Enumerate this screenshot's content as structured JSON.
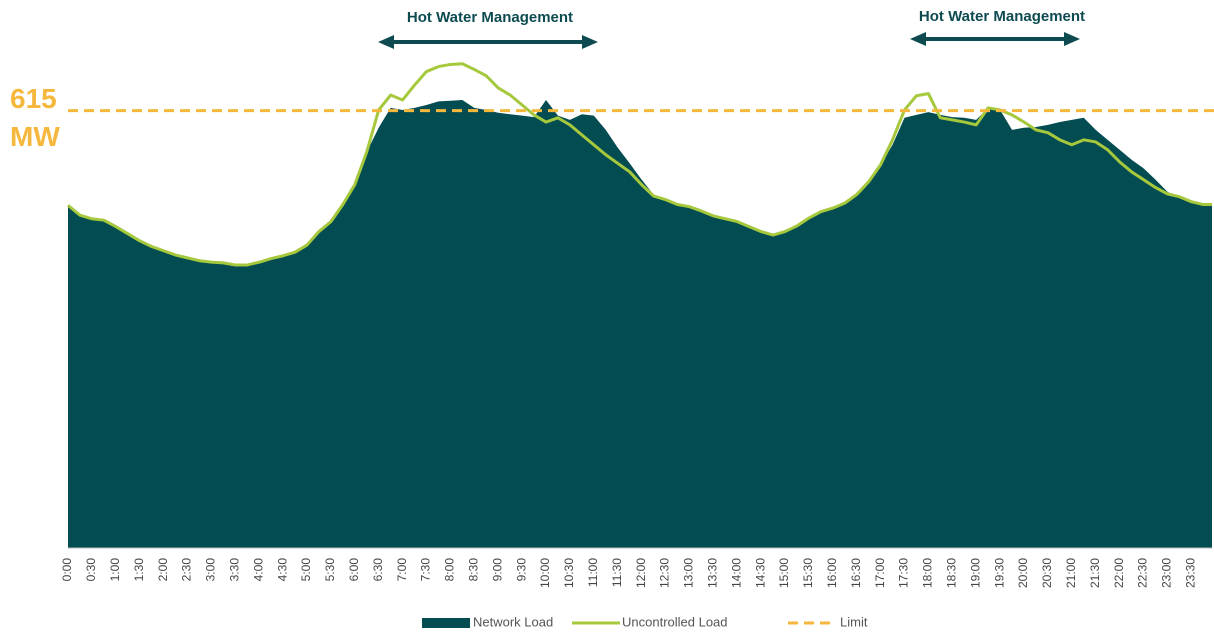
{
  "chart_data": {
    "type": "area_line",
    "categories": [
      "0:00",
      null,
      "0:30",
      null,
      "1:00",
      null,
      "1:30",
      null,
      "2:00",
      null,
      "2:30",
      null,
      "3:00",
      null,
      "3:30",
      null,
      "4:00",
      null,
      "4:30",
      null,
      "5:00",
      null,
      "5:30",
      null,
      "6:00",
      null,
      "6:30",
      null,
      "7:00",
      null,
      "7:30",
      null,
      "8:00",
      null,
      "8:30",
      null,
      "9:00",
      null,
      "9:30",
      null,
      "10:00",
      null,
      "10:30",
      null,
      "11:00",
      null,
      "11:30",
      null,
      "12:00",
      null,
      "12:30",
      null,
      "13:00",
      null,
      "13:30",
      null,
      "14:00",
      null,
      "14:30",
      null,
      "15:00",
      null,
      "15:30",
      null,
      "16:00",
      null,
      "16:30",
      null,
      "17:00",
      null,
      "17:30",
      null,
      "18:00",
      null,
      "18:30",
      null,
      "19:00",
      null,
      "19:30",
      null,
      "20:00",
      null,
      "20:30",
      null,
      "21:00",
      null,
      "21:30",
      null,
      "22:00",
      null,
      "22:30",
      null,
      "23:00",
      null,
      "23:30",
      null
    ],
    "series": [
      {
        "name": "Network Load",
        "kind": "area",
        "color": "#034c52",
        "values": [
          482,
          468,
          463,
          461,
          452,
          442,
          432,
          424,
          418,
          412,
          408,
          404,
          402,
          401,
          398,
          398,
          402,
          407,
          411,
          416,
          426,
          445,
          459,
          483,
          511,
          557,
          591,
          619,
          616,
          619,
          623,
          628,
          629,
          630,
          619,
          616,
          612,
          610,
          608,
          606,
          630,
          608,
          602,
          610,
          608,
          588,
          563,
          541,
          518,
          497,
          490,
          485,
          480,
          474,
          467,
          463,
          459,
          452,
          445,
          440,
          445,
          453,
          464,
          473,
          478,
          485,
          497,
          515,
          539,
          567,
          605,
          609,
          613,
          609,
          606,
          605,
          602,
          619,
          616,
          588,
          591,
          592,
          595,
          599,
          602,
          605,
          588,
          574,
          560,
          546,
          534,
          518,
          501,
          492,
          487,
          483
        ]
      },
      {
        "name": "Uncontrolled Load",
        "kind": "line",
        "color": "#a6c83c",
        "values": [
          482,
          468,
          463,
          461,
          452,
          442,
          432,
          424,
          418,
          412,
          408,
          404,
          402,
          401,
          398,
          398,
          402,
          407,
          411,
          416,
          426,
          445,
          459,
          483,
          511,
          557,
          616,
          637,
          630,
          651,
          670,
          677,
          680,
          681,
          673,
          664,
          647,
          637,
          623,
          609,
          599,
          605,
          595,
          581,
          567,
          553,
          541,
          529,
          511,
          495,
          490,
          483,
          480,
          474,
          467,
          463,
          459,
          452,
          445,
          440,
          445,
          453,
          464,
          473,
          478,
          485,
          497,
          515,
          539,
          574,
          616,
          636,
          639,
          605,
          602,
          599,
          595,
          619,
          616,
          609,
          599,
          588,
          584,
          574,
          567,
          574,
          571,
          560,
          543,
          529,
          518,
          507,
          498,
          494,
          487,
          483
        ]
      }
    ],
    "limit": {
      "name": "Limit",
      "value": 615,
      "label": "615 MW",
      "color": "#f5b83d"
    },
    "annotations": [
      "Hot Water Management",
      "Hot Water Management"
    ],
    "ylim": [
      0,
      720
    ]
  }
}
